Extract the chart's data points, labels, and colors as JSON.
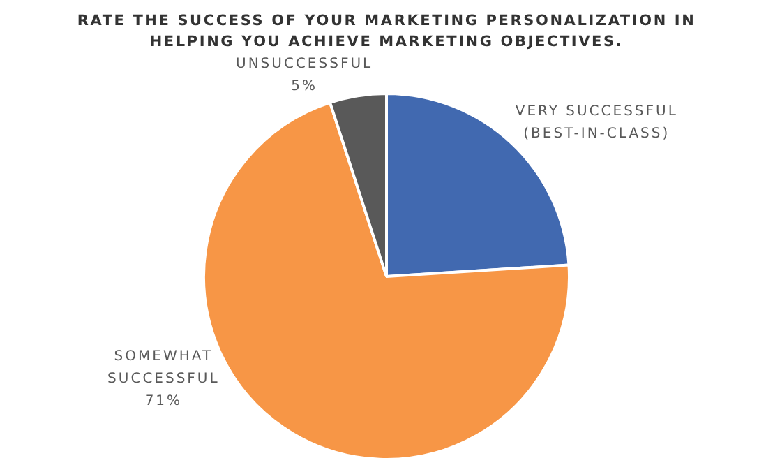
{
  "chart_data": {
    "type": "pie",
    "title": "RATE THE SUCCESS OF YOUR MARKETING PERSONALIZATION IN HELPING YOU ACHIEVE MARKETING OBJECTIVES.",
    "categories": [
      "VERY SUCCESSFUL (BEST-IN-CLASS)",
      "SOMEWHAT SUCCESSFUL",
      "UNSUCCESSFUL"
    ],
    "values": [
      24,
      71,
      5
    ],
    "colors": [
      "#4169b0",
      "#f79646",
      "#595959"
    ],
    "value_labels": [
      null,
      "71%",
      "5%"
    ],
    "legend": false
  }
}
